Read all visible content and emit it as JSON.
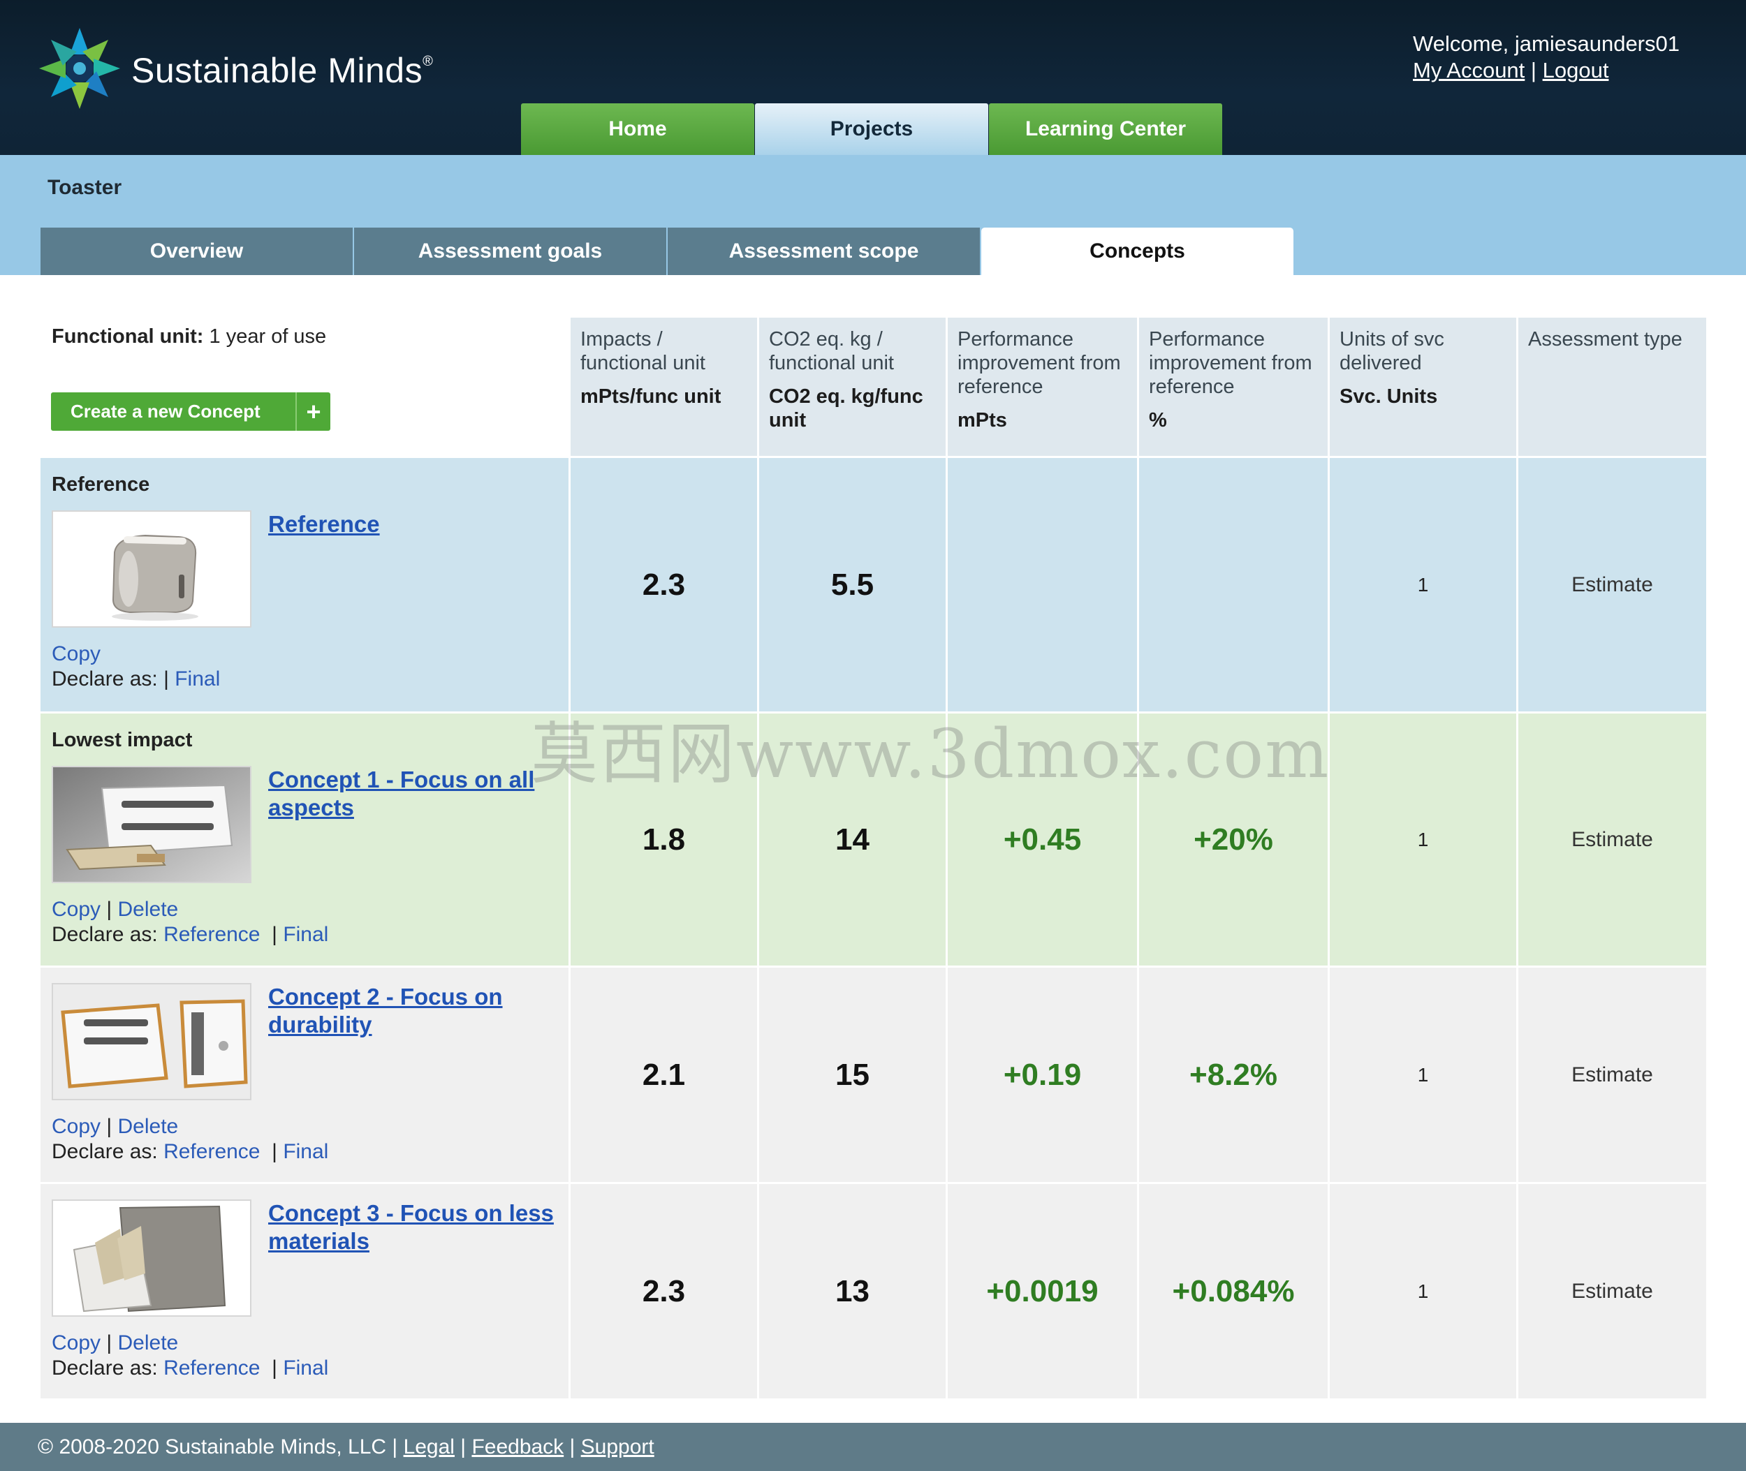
{
  "brand": {
    "name": "Sustainable Minds",
    "mark": "®"
  },
  "user": {
    "welcome": "Welcome, jamiesaunders01",
    "my_account": "My Account",
    "separator": "|",
    "logout": "Logout"
  },
  "main_nav": [
    "Home",
    "Projects",
    "Learning Center"
  ],
  "main_nav_active": "Projects",
  "project": {
    "title": "Toaster"
  },
  "sub_tabs": [
    "Overview",
    "Assessment goals",
    "Assessment scope",
    "Concepts"
  ],
  "sub_tabs_active": "Concepts",
  "functional_unit": {
    "label": "Functional unit:",
    "value": "1 year of use"
  },
  "create_button": {
    "label": "Create a new Concept",
    "icon": "plus-icon"
  },
  "columns": [
    {
      "title": "Impacts / functional unit",
      "unit": "mPts/func unit"
    },
    {
      "title": "CO2 eq. kg / functional unit",
      "unit": "CO2 eq. kg/func unit"
    },
    {
      "title": "Performance improvement from reference",
      "unit": "mPts"
    },
    {
      "title": "Performance improvement from reference",
      "unit": "%"
    },
    {
      "title": "Units of svc delivered",
      "unit": "Svc. Units"
    },
    {
      "title": "Assessment type",
      "unit": ""
    }
  ],
  "rows": [
    {
      "group": "Reference",
      "name": "Reference",
      "actions": [
        "Copy"
      ],
      "declare_label": "Declare as:",
      "declare": [
        "Final"
      ],
      "impacts": "2.3",
      "co2": "5.5",
      "perf_mpts": "",
      "perf_pct": "",
      "units": "1",
      "type": "Estimate"
    },
    {
      "group": "Lowest impact",
      "name": "Concept 1 - Focus on all aspects",
      "actions": [
        "Copy",
        "Delete"
      ],
      "declare_label": "Declare as:",
      "declare": [
        "Reference",
        "Final"
      ],
      "impacts": "1.8",
      "co2": "14",
      "perf_mpts": "+0.45",
      "perf_pct": "+20%",
      "units": "1",
      "type": "Estimate"
    },
    {
      "group": "",
      "name": "Concept 2 - Focus on durability",
      "actions": [
        "Copy",
        "Delete"
      ],
      "declare_label": "Declare as:",
      "declare": [
        "Reference",
        "Final"
      ],
      "impacts": "2.1",
      "co2": "15",
      "perf_mpts": "+0.19",
      "perf_pct": "+8.2%",
      "units": "1",
      "type": "Estimate"
    },
    {
      "group": "",
      "name": "Concept 3 - Focus on less materials",
      "actions": [
        "Copy",
        "Delete"
      ],
      "declare_label": "Declare as:",
      "declare": [
        "Reference",
        "Final"
      ],
      "impacts": "2.3",
      "co2": "13",
      "perf_mpts": "+0.0019",
      "perf_pct": "+0.084%",
      "units": "1",
      "type": "Estimate"
    }
  ],
  "watermark": "莫西网www.3dmox.com",
  "footer": {
    "copyright": "© 2008-2020 Sustainable Minds, LLC",
    "links": [
      "Legal",
      "Feedback",
      "Support"
    ]
  },
  "colors": {
    "header": "#0f2436",
    "nav_green": "#4a9a33",
    "subheader": "#97c8e6",
    "ref_row": "#cde3ee",
    "low_row": "#deeed6",
    "link": "#2053b5",
    "positive": "#2f7d22",
    "footer": "#5f7b88"
  }
}
